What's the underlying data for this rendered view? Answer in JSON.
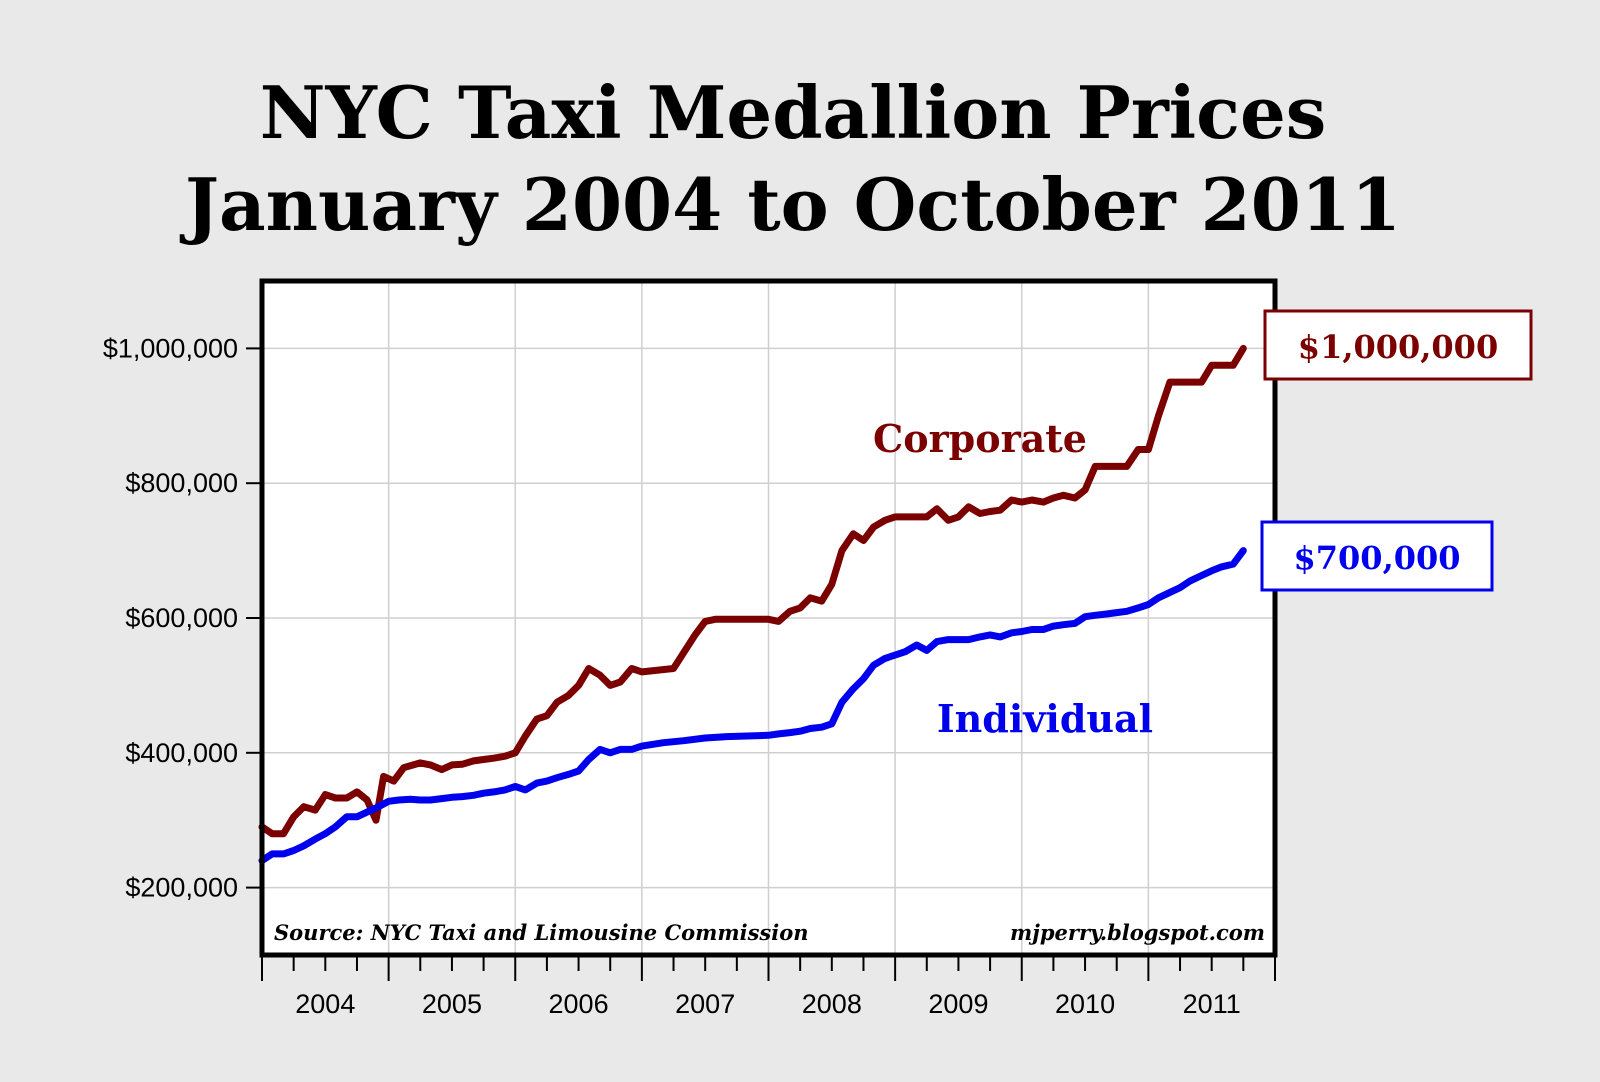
{
  "chart_data": {
    "type": "line",
    "title": "NYC Taxi Medallion Prices",
    "subtitle": "January 2004 to October 2011",
    "source_note": "Source: NYC Taxi and Limousine Commission",
    "credit": "mjperry.blogspot.com",
    "x_tick_labels": [
      "2004",
      "2005",
      "2006",
      "2007",
      "2008",
      "2009",
      "2010",
      "2011"
    ],
    "y_tick_labels": [
      "$200,000",
      "$400,000",
      "$600,000",
      "$800,000",
      "$1,000,000"
    ],
    "y_ticks": [
      200000,
      400000,
      600000,
      800000,
      1000000
    ],
    "xlim": [
      2004.0,
      2012.0
    ],
    "ylim": [
      100000,
      1100000
    ],
    "grid": true,
    "series": [
      {
        "name": "Corporate",
        "color": "#7b0000",
        "end_label": "$1,000,000",
        "x": [
          2004.0,
          2004.08,
          2004.17,
          2004.25,
          2004.33,
          2004.42,
          2004.5,
          2004.58,
          2004.67,
          2004.75,
          2004.83,
          2004.9,
          2004.96,
          2005.04,
          2005.12,
          2005.25,
          2005.33,
          2005.42,
          2005.5,
          2005.58,
          2005.67,
          2005.75,
          2005.83,
          2005.92,
          2006.0,
          2006.08,
          2006.17,
          2006.25,
          2006.33,
          2006.42,
          2006.5,
          2006.58,
          2006.67,
          2006.75,
          2006.83,
          2006.92,
          2007.0,
          2007.25,
          2007.42,
          2007.5,
          2007.58,
          2007.67,
          2007.75,
          2007.83,
          2007.92,
          2008.0,
          2008.08,
          2008.17,
          2008.25,
          2008.33,
          2008.42,
          2008.5,
          2008.58,
          2008.67,
          2008.75,
          2008.83,
          2008.92,
          2009.0,
          2009.08,
          2009.17,
          2009.25,
          2009.33,
          2009.42,
          2009.5,
          2009.58,
          2009.67,
          2009.75,
          2009.83,
          2009.92,
          2010.0,
          2010.08,
          2010.17,
          2010.25,
          2010.33,
          2010.42,
          2010.5,
          2010.58,
          2010.67,
          2010.75,
          2010.83,
          2010.92,
          2011.0,
          2011.08,
          2011.17,
          2011.25,
          2011.33,
          2011.42,
          2011.5,
          2011.58,
          2011.67,
          2011.75
        ],
        "y": [
          290000,
          280000,
          280000,
          305000,
          320000,
          315000,
          338000,
          333000,
          333000,
          342000,
          330000,
          300000,
          365000,
          358000,
          378000,
          385000,
          382000,
          375000,
          382000,
          383000,
          388000,
          390000,
          392000,
          395000,
          400000,
          425000,
          450000,
          455000,
          475000,
          485000,
          500000,
          525000,
          515000,
          500000,
          505000,
          525000,
          520000,
          525000,
          575000,
          595000,
          598000,
          598000,
          598000,
          598000,
          598000,
          598000,
          595000,
          610000,
          615000,
          630000,
          625000,
          650000,
          700000,
          725000,
          715000,
          735000,
          745000,
          750000,
          750000,
          750000,
          750000,
          762000,
          745000,
          750000,
          765000,
          755000,
          758000,
          760000,
          775000,
          772000,
          775000,
          772000,
          778000,
          782000,
          778000,
          790000,
          825000,
          825000,
          825000,
          825000,
          850000,
          850000,
          900000,
          950000,
          950000,
          950000,
          950000,
          975000,
          975000,
          975000,
          1000000
        ]
      },
      {
        "name": "Individual",
        "color": "#0000ee",
        "end_label": "$700,000",
        "x": [
          2004.0,
          2004.08,
          2004.17,
          2004.25,
          2004.33,
          2004.42,
          2004.5,
          2004.58,
          2004.67,
          2004.75,
          2004.83,
          2004.92,
          2005.0,
          2005.08,
          2005.17,
          2005.25,
          2005.33,
          2005.42,
          2005.5,
          2005.58,
          2005.67,
          2005.75,
          2005.83,
          2005.92,
          2006.0,
          2006.08,
          2006.17,
          2006.25,
          2006.33,
          2006.42,
          2006.5,
          2006.58,
          2006.67,
          2006.75,
          2006.83,
          2006.92,
          2007.0,
          2007.17,
          2007.33,
          2007.5,
          2007.67,
          2007.83,
          2008.0,
          2008.08,
          2008.17,
          2008.25,
          2008.33,
          2008.42,
          2008.5,
          2008.58,
          2008.67,
          2008.75,
          2008.83,
          2008.92,
          2009.0,
          2009.08,
          2009.17,
          2009.25,
          2009.33,
          2009.42,
          2009.5,
          2009.58,
          2009.67,
          2009.75,
          2009.83,
          2009.92,
          2010.0,
          2010.08,
          2010.17,
          2010.25,
          2010.33,
          2010.42,
          2010.5,
          2010.58,
          2010.67,
          2010.75,
          2010.83,
          2010.92,
          2011.0,
          2011.08,
          2011.17,
          2011.25,
          2011.33,
          2011.42,
          2011.5,
          2011.58,
          2011.67,
          2011.75
        ],
        "y": [
          240000,
          250000,
          250000,
          255000,
          262000,
          272000,
          280000,
          290000,
          305000,
          305000,
          312000,
          320000,
          328000,
          330000,
          331000,
          330000,
          330000,
          332000,
          334000,
          335000,
          337000,
          340000,
          342000,
          345000,
          350000,
          345000,
          355000,
          358000,
          363000,
          368000,
          373000,
          390000,
          405000,
          400000,
          405000,
          405000,
          410000,
          415000,
          418000,
          422000,
          424000,
          425000,
          426000,
          428000,
          430000,
          432000,
          436000,
          438000,
          443000,
          475000,
          495000,
          510000,
          530000,
          540000,
          545000,
          550000,
          560000,
          552000,
          565000,
          568000,
          568000,
          568000,
          572000,
          575000,
          572000,
          578000,
          580000,
          583000,
          583000,
          588000,
          590000,
          592000,
          602000,
          604000,
          606000,
          608000,
          610000,
          615000,
          620000,
          630000,
          638000,
          645000,
          655000,
          663000,
          670000,
          676000,
          680000,
          700000
        ]
      }
    ]
  }
}
